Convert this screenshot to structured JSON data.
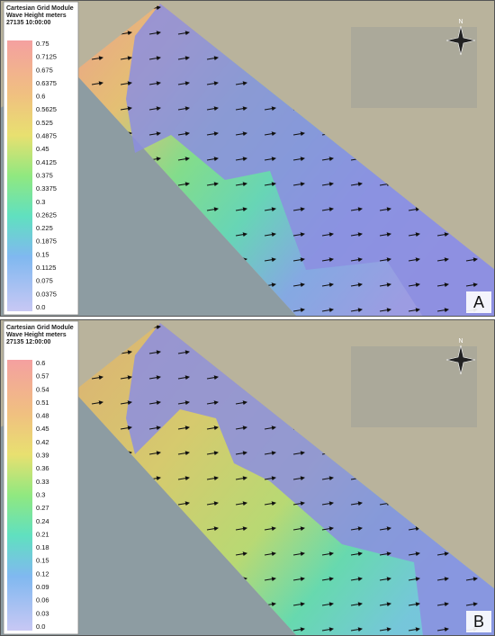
{
  "panels": [
    {
      "legend": {
        "title": "Cartesian Grid Module",
        "subtitle": "Wave Height meters",
        "time": "27135 10:00:00",
        "labels": [
          "0.75",
          "0.7125",
          "0.675",
          "0.6375",
          "0.6",
          "0.5625",
          "0.525",
          "0.4875",
          "0.45",
          "0.4125",
          "0.375",
          "0.3375",
          "0.3",
          "0.2625",
          "0.225",
          "0.1875",
          "0.15",
          "0.1125",
          "0.075",
          "0.0375",
          "0.0"
        ]
      },
      "letter": "A",
      "compass": "N"
    },
    {
      "legend": {
        "title": "Cartesian Grid Module",
        "subtitle": "Wave Height meters",
        "time": "27135 12:00:00",
        "labels": [
          "0.6",
          "0.57",
          "0.54",
          "0.51",
          "0.48",
          "0.45",
          "0.42",
          "0.39",
          "0.36",
          "0.33",
          "0.3",
          "0.27",
          "0.24",
          "0.21",
          "0.18",
          "0.15",
          "0.12",
          "0.09",
          "0.06",
          "0.03",
          "0.0"
        ]
      },
      "letter": "B",
      "compass": "N"
    }
  ]
}
